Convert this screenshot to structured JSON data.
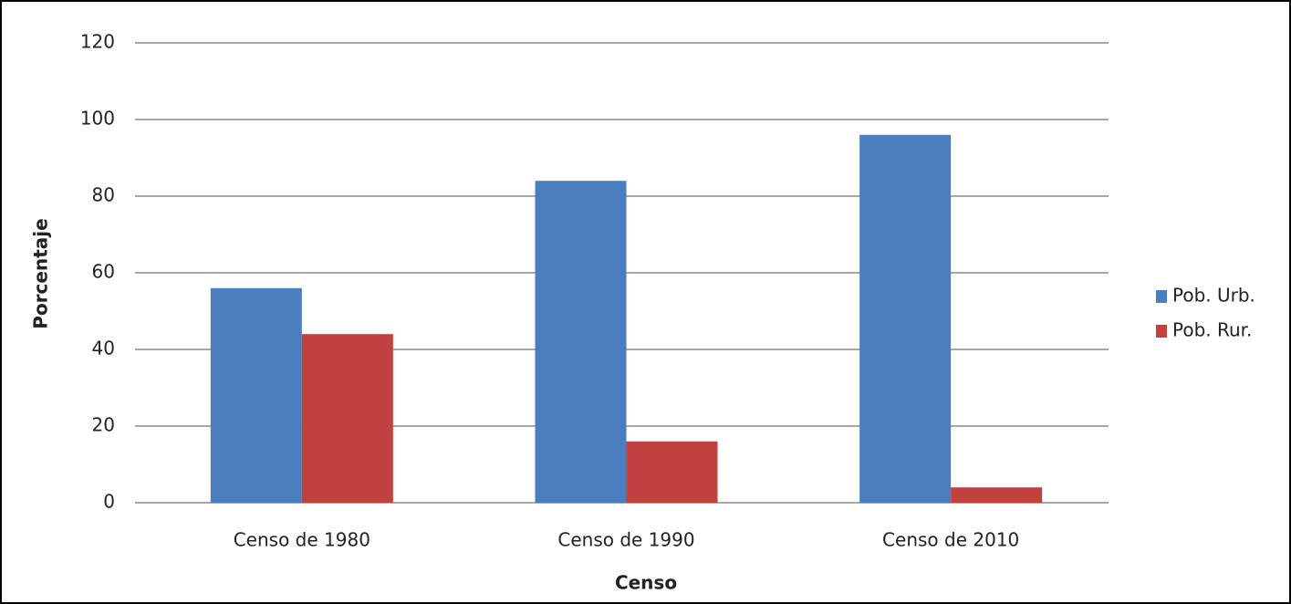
{
  "chart_data": {
    "type": "bar",
    "x_label": "Censo",
    "y_label": "Porcentaje",
    "categories": [
      "Censo de 1980",
      "Censo de 1990",
      "Censo de 2010"
    ],
    "series": [
      {
        "name": "Pob. Urb.",
        "color": "#4a7ebf",
        "values": [
          56,
          84,
          96
        ]
      },
      {
        "name": "Pob. Rur.",
        "color": "#c0413e",
        "values": [
          44,
          16,
          4
        ]
      }
    ],
    "ylim": [
      0,
      120
    ],
    "yticks": [
      0,
      20,
      40,
      60,
      80,
      100,
      120
    ],
    "grid": true,
    "legend": "right"
  }
}
